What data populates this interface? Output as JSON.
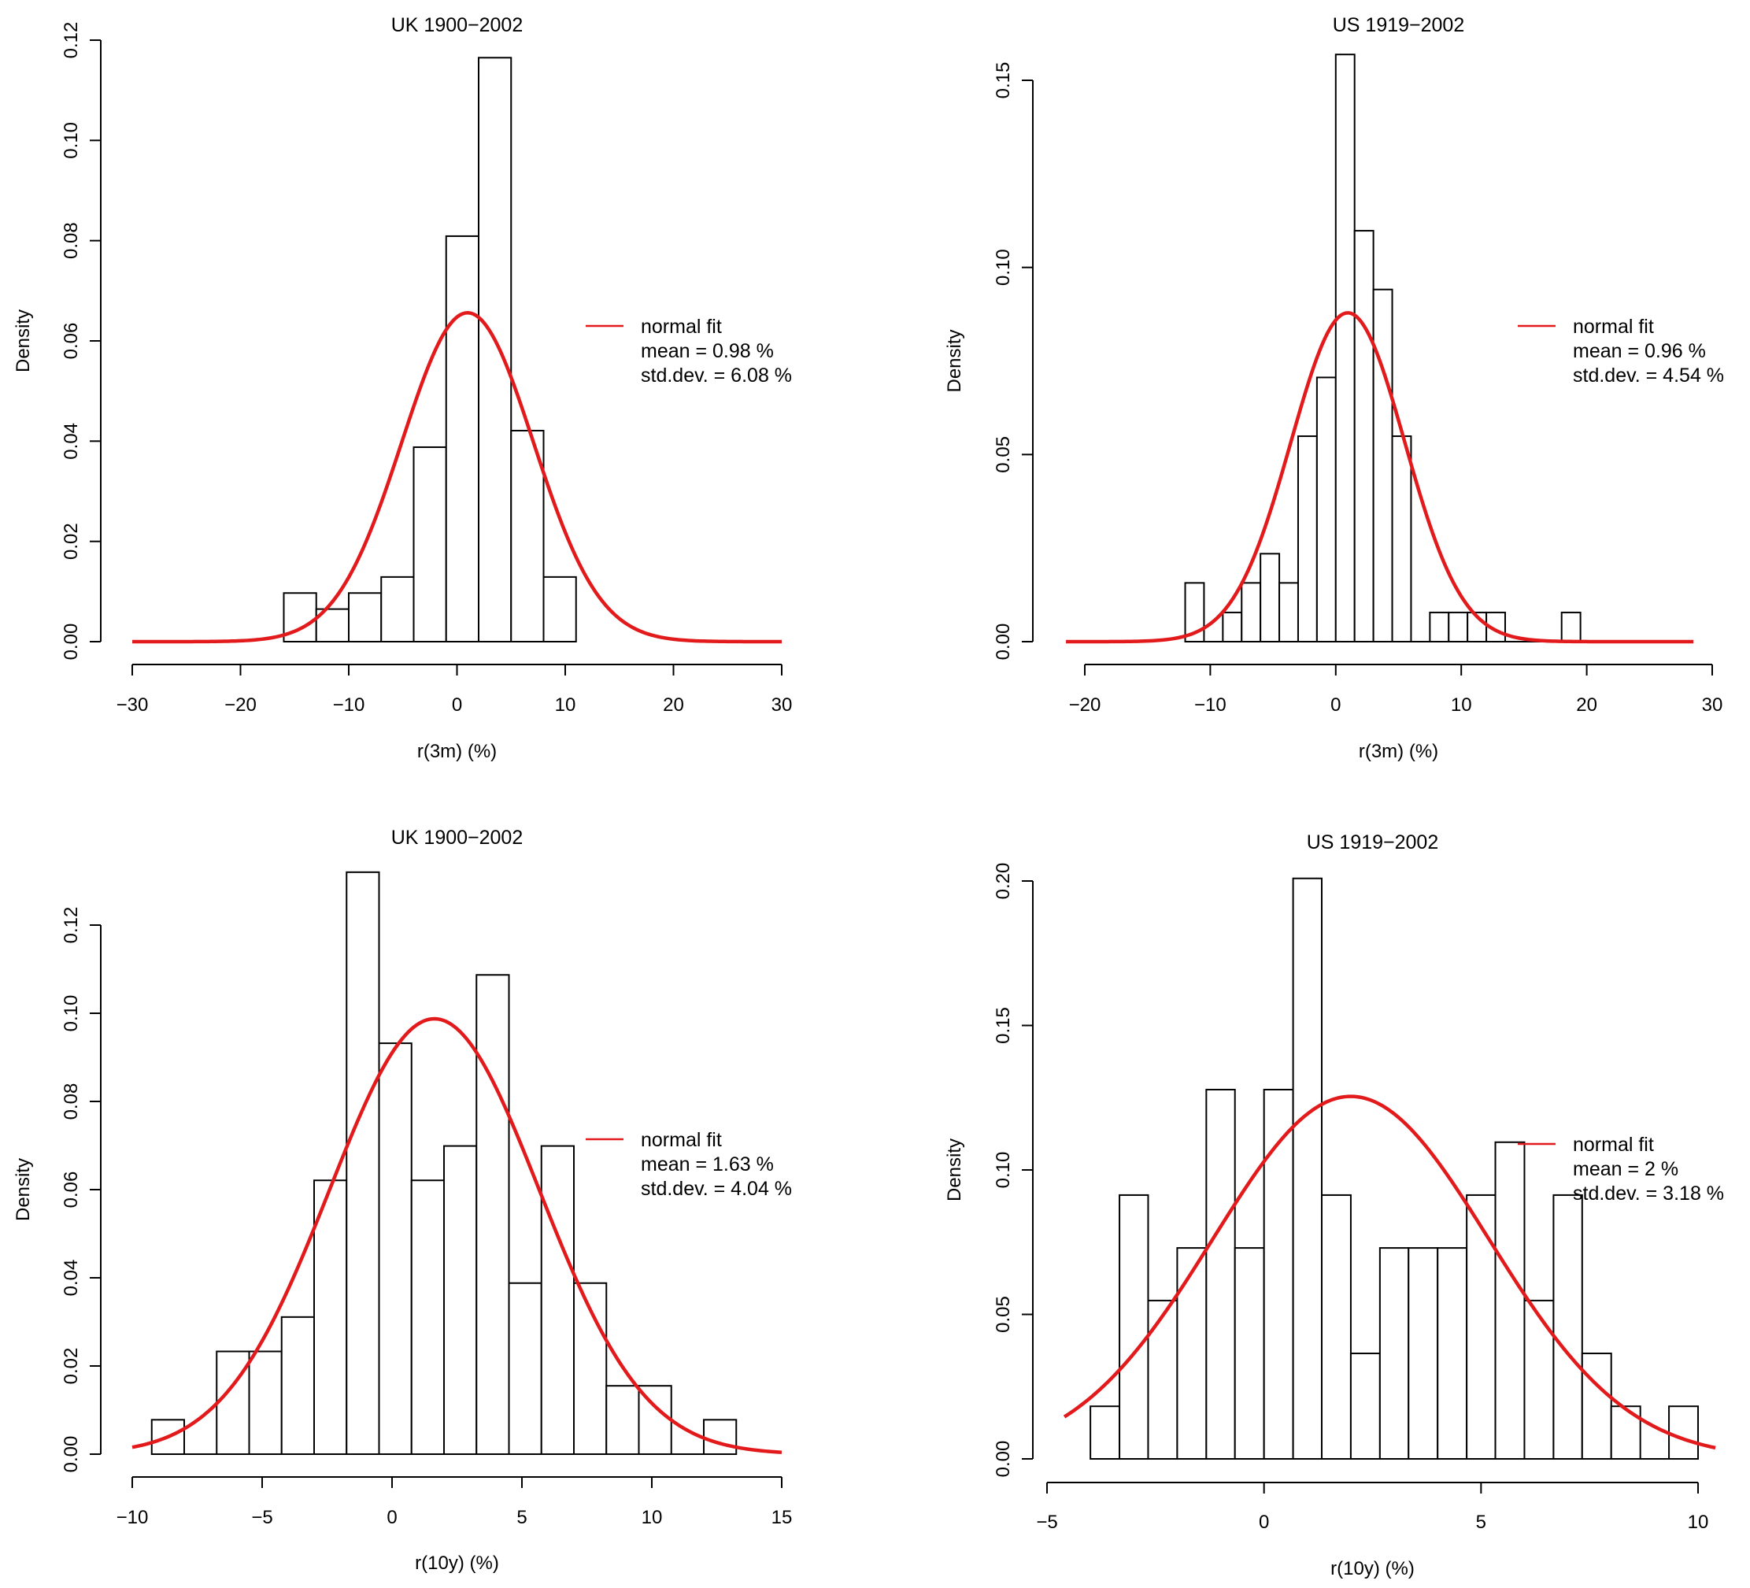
{
  "chart_data": [
    {
      "type": "bar",
      "subtype": "histogram",
      "title": "UK 1900−2002",
      "xlabel": "r(3m) (%)",
      "ylabel": "Density",
      "xlim": [
        -30,
        30
      ],
      "ylim": [
        0,
        0.12
      ],
      "xticks": [
        -30,
        -20,
        -10,
        0,
        10,
        20,
        30
      ],
      "xtick_labels": [
        "−30",
        "−20",
        "−10",
        "0",
        "10",
        "20",
        "30"
      ],
      "yticks": [
        0,
        0.02,
        0.04,
        0.06,
        0.08,
        0.1,
        0.12
      ],
      "ytick_labels": [
        "0.00",
        "0.02",
        "0.04",
        "0.06",
        "0.08",
        "0.10",
        "0.12"
      ],
      "bins": [
        {
          "x0": -16,
          "x1": -13,
          "density": 0.0097
        },
        {
          "x0": -13,
          "x1": -10,
          "density": 0.0065
        },
        {
          "x0": -10,
          "x1": -7,
          "density": 0.0097
        },
        {
          "x0": -7,
          "x1": -4,
          "density": 0.0129
        },
        {
          "x0": -4,
          "x1": -1,
          "density": 0.0388
        },
        {
          "x0": -1,
          "x1": 2,
          "density": 0.0809
        },
        {
          "x0": 2,
          "x1": 5,
          "density": 0.1165
        },
        {
          "x0": 5,
          "x1": 8,
          "density": 0.0421
        },
        {
          "x0": 8,
          "x1": 11,
          "density": 0.0129
        }
      ],
      "fit": {
        "mean": 0.98,
        "sd": 6.08,
        "from": -30,
        "to": 30
      },
      "legend": {
        "placement": "right",
        "line_label": "normal fit",
        "lines": [
          "mean = 0.98 %",
          "std.dev. = 6.08 %"
        ]
      }
    },
    {
      "type": "bar",
      "subtype": "histogram",
      "title": "US 1919−2002",
      "xlabel": "r(3m) (%)",
      "ylabel": "Density",
      "xlim": [
        -20,
        30
      ],
      "ylim": [
        0,
        0.15
      ],
      "xticks": [
        -20,
        -10,
        0,
        10,
        20,
        30
      ],
      "xtick_labels": [
        "−20",
        "−10",
        "0",
        "10",
        "20",
        "30"
      ],
      "yticks": [
        0,
        0.05,
        0.1,
        0.15
      ],
      "ytick_labels": [
        "0.00",
        "0.05",
        "0.10",
        "0.15"
      ],
      "bins": [
        {
          "x0": -12,
          "x1": -10.5,
          "density": 0.0157
        },
        {
          "x0": -10.5,
          "x1": -9,
          "density": 0
        },
        {
          "x0": -9,
          "x1": -7.5,
          "density": 0.0078
        },
        {
          "x0": -7.5,
          "x1": -6,
          "density": 0.0157
        },
        {
          "x0": -6,
          "x1": -4.5,
          "density": 0.0235
        },
        {
          "x0": -4.5,
          "x1": -3,
          "density": 0.0157
        },
        {
          "x0": -3,
          "x1": -1.5,
          "density": 0.0549
        },
        {
          "x0": -1.5,
          "x1": 0,
          "density": 0.0706
        },
        {
          "x0": 0,
          "x1": 1.5,
          "density": 0.1569
        },
        {
          "x0": 1.5,
          "x1": 3,
          "density": 0.1098
        },
        {
          "x0": 3,
          "x1": 4.5,
          "density": 0.0941
        },
        {
          "x0": 4.5,
          "x1": 6,
          "density": 0.0549
        },
        {
          "x0": 6,
          "x1": 7.5,
          "density": 0
        },
        {
          "x0": 7.5,
          "x1": 9,
          "density": 0.0078
        },
        {
          "x0": 9,
          "x1": 10.5,
          "density": 0.0078
        },
        {
          "x0": 10.5,
          "x1": 12,
          "density": 0.0078
        },
        {
          "x0": 12,
          "x1": 13.5,
          "density": 0.0078
        },
        {
          "x0": 13.5,
          "x1": 15,
          "density": 0
        },
        {
          "x0": 15,
          "x1": 16.5,
          "density": 0
        },
        {
          "x0": 16.5,
          "x1": 18,
          "density": 0
        },
        {
          "x0": 18,
          "x1": 19.5,
          "density": 0.0078
        }
      ],
      "fit": {
        "mean": 0.96,
        "sd": 4.54,
        "from": -21.5,
        "to": 28.5
      },
      "legend": {
        "placement": "right",
        "line_label": "normal fit",
        "lines": [
          "mean = 0.96 %",
          "std.dev. = 4.54 %"
        ]
      }
    },
    {
      "type": "bar",
      "subtype": "histogram",
      "title": "UK 1900−2002",
      "xlabel": "r(10y) (%)",
      "ylabel": "Density",
      "xlim": [
        -10,
        15
      ],
      "ylim": [
        0,
        0.12
      ],
      "xticks": [
        -10,
        -5,
        0,
        5,
        10,
        15
      ],
      "xtick_labels": [
        "−10",
        "−5",
        "0",
        "5",
        "10",
        "15"
      ],
      "yticks": [
        0,
        0.02,
        0.04,
        0.06,
        0.08,
        0.1,
        0.12
      ],
      "ytick_labels": [
        "0.00",
        "0.02",
        "0.04",
        "0.06",
        "0.08",
        "0.10",
        "0.12"
      ],
      "bins": [
        {
          "x0": -9.25,
          "x1": -8,
          "density": 0.0078
        },
        {
          "x0": -8,
          "x1": -6.75,
          "density": 0
        },
        {
          "x0": -6.75,
          "x1": -5.5,
          "density": 0.0233
        },
        {
          "x0": -5.5,
          "x1": -4.25,
          "density": 0.0233
        },
        {
          "x0": -4.25,
          "x1": -3,
          "density": 0.0311
        },
        {
          "x0": -3,
          "x1": -1.75,
          "density": 0.0621
        },
        {
          "x0": -1.75,
          "x1": -0.5,
          "density": 0.132
        },
        {
          "x0": -0.5,
          "x1": 0.75,
          "density": 0.0932
        },
        {
          "x0": 0.75,
          "x1": 2,
          "density": 0.0621
        },
        {
          "x0": 2,
          "x1": 3.25,
          "density": 0.0699
        },
        {
          "x0": 3.25,
          "x1": 4.5,
          "density": 0.1087
        },
        {
          "x0": 4.5,
          "x1": 5.75,
          "density": 0.0388
        },
        {
          "x0": 5.75,
          "x1": 7,
          "density": 0.0699
        },
        {
          "x0": 7,
          "x1": 8.25,
          "density": 0.0388
        },
        {
          "x0": 8.25,
          "x1": 9.5,
          "density": 0.0155
        },
        {
          "x0": 9.5,
          "x1": 10.75,
          "density": 0.0155
        },
        {
          "x0": 10.75,
          "x1": 12,
          "density": 0
        },
        {
          "x0": 12,
          "x1": 13.25,
          "density": 0.0078
        }
      ],
      "fit": {
        "mean": 1.63,
        "sd": 4.04,
        "from": -10,
        "to": 15
      },
      "legend": {
        "placement": "right",
        "line_label": "normal fit",
        "lines": [
          "mean = 1.63 %",
          "std.dev. = 4.04 %"
        ]
      }
    },
    {
      "type": "bar",
      "subtype": "histogram",
      "title": "US 1919−2002",
      "xlabel": "r(10y) (%)",
      "ylabel": "Density",
      "xlim": [
        -5,
        10
      ],
      "ylim": [
        0,
        0.2
      ],
      "xticks": [
        -5,
        0,
        5,
        10
      ],
      "xtick_labels": [
        "−5",
        "0",
        "5",
        "10"
      ],
      "yticks": [
        0,
        0.05,
        0.1,
        0.15,
        0.2
      ],
      "ytick_labels": [
        "0.00",
        "0.05",
        "0.10",
        "0.15",
        "0.20"
      ],
      "bins": [
        {
          "x0": -4,
          "x1": -3.33,
          "density": 0.0182
        },
        {
          "x0": -3.33,
          "x1": -2.67,
          "density": 0.0913
        },
        {
          "x0": -2.67,
          "x1": -2,
          "density": 0.0548
        },
        {
          "x0": -2,
          "x1": -1.33,
          "density": 0.073
        },
        {
          "x0": -1.33,
          "x1": -0.67,
          "density": 0.1278
        },
        {
          "x0": -0.67,
          "x1": 0,
          "density": 0.073
        },
        {
          "x0": 0,
          "x1": 0.67,
          "density": 0.1278
        },
        {
          "x0": 0.67,
          "x1": 1.33,
          "density": 0.2009
        },
        {
          "x0": 1.33,
          "x1": 2,
          "density": 0.0913
        },
        {
          "x0": 2,
          "x1": 2.67,
          "density": 0.0365
        },
        {
          "x0": 2.67,
          "x1": 3.33,
          "density": 0.073
        },
        {
          "x0": 3.33,
          "x1": 4,
          "density": 0.073
        },
        {
          "x0": 4,
          "x1": 4.67,
          "density": 0.073
        },
        {
          "x0": 4.67,
          "x1": 5.33,
          "density": 0.0913
        },
        {
          "x0": 5.33,
          "x1": 6,
          "density": 0.1096
        },
        {
          "x0": 6,
          "x1": 6.67,
          "density": 0.0548
        },
        {
          "x0": 6.67,
          "x1": 7.33,
          "density": 0.0913
        },
        {
          "x0": 7.33,
          "x1": 8,
          "density": 0.0365
        },
        {
          "x0": 8,
          "x1": 8.67,
          "density": 0.0182
        },
        {
          "x0": 8.67,
          "x1": 9.33,
          "density": 0
        },
        {
          "x0": 9.33,
          "x1": 10,
          "density": 0.0182
        }
      ],
      "fit": {
        "mean": 2,
        "sd": 3.18,
        "from": -4.6,
        "to": 10.4
      },
      "legend": {
        "placement": "right",
        "line_label": "normal fit",
        "lines": [
          "mean = 2 %",
          "std.dev. = 3.18 %"
        ]
      }
    }
  ],
  "colors": {
    "fit_line": "#e31a1c",
    "bars_fill": "#ffffff",
    "bars_stroke": "#000000"
  }
}
